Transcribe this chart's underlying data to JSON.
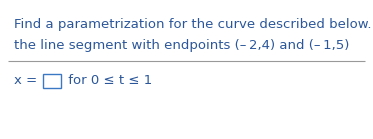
{
  "line1": "Find a parametrization for the curve described below.",
  "line2": "the line segment with endpoints (– 2,4) and (– 1,5)",
  "line3_prefix": "x = ",
  "line3_suffix": " for 0 ≤ t ≤ 1",
  "bg_color": "#ffffff",
  "text_color": "#2B579A",
  "separator_color": "#999999",
  "font_size": 9.5,
  "figwidth": 3.73,
  "figheight": 1.39,
  "dpi": 100
}
